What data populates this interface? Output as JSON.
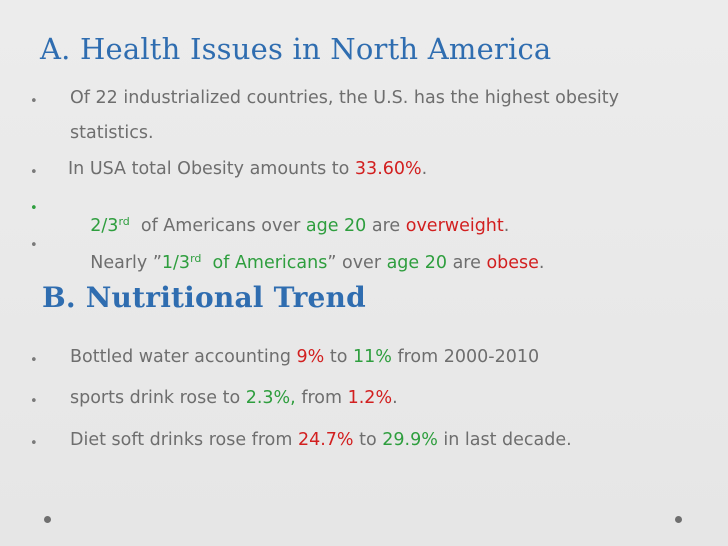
{
  "section_a": {
    "title": "A. Health Issues in North America",
    "bullet_char": "•",
    "item1": {
      "line1": "Of 22 industrialized countries, the U.S. has the highest obesity",
      "line2": "statistics."
    },
    "item2": {
      "prefix": "In USA total Obesity amounts to ",
      "value": "33.60%",
      "suffix": "."
    },
    "item3": {
      "fraction_num": "2/3",
      "ordinal": "rd",
      "mid1": "  of Americans over ",
      "age": "age 20",
      "mid2": " are ",
      "status": "overweight",
      "suffix": "."
    },
    "item4": {
      "prefix": "Nearly ",
      "quote_open": "”",
      "fraction_num": "1/3",
      "ordinal": "rd",
      "quoted_rest": "  of Americans",
      "quote_close": "”",
      "mid1": " over ",
      "age": "age 20",
      "mid2": " are ",
      "status": "obese",
      "suffix": "."
    }
  },
  "section_b": {
    "title": "B. Nutritional Trend",
    "bullet_char": "•",
    "item1": {
      "prefix": "Bottled water accounting ",
      "from": "9%",
      "mid": " to ",
      "to": "11%",
      "suffix": " from 2000-2010"
    },
    "item2": {
      "prefix": "sports drink rose to ",
      "to": "2.3%,",
      "mid": " from ",
      "from": "1.2%",
      "suffix": "."
    },
    "item3": {
      "prefix": "Diet soft drinks rose from ",
      "from": "24.7%",
      "mid": " to ",
      "to": "29.9%",
      "suffix": " in last decade."
    }
  },
  "colors": {
    "heading": "#2f6db0",
    "body_text": "#6e6e6e",
    "highlight_red": "#d21f1f",
    "highlight_green": "#2e9e3e"
  }
}
